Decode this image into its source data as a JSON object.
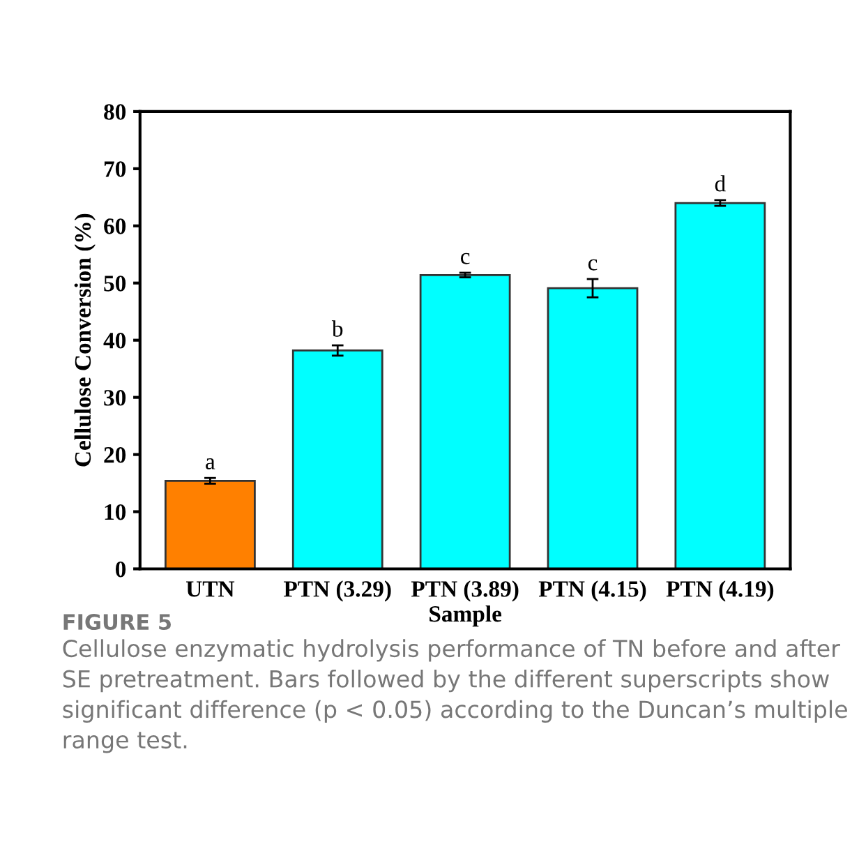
{
  "chart_data": {
    "type": "bar",
    "xlabel": "Sample",
    "ylabel": "Cellulose Conversion (%)",
    "categories": [
      "UTN",
      "PTN (3.29)",
      "PTN (3.89)",
      "PTN (4.15)",
      "PTN (4.19)"
    ],
    "values": [
      15.4,
      38.2,
      51.4,
      49.1,
      64.0
    ],
    "errors": [
      0.5,
      0.9,
      0.4,
      1.6,
      0.5
    ],
    "colors": [
      "#ff8000",
      "#00ffff",
      "#00ffff",
      "#00ffff",
      "#00ffff"
    ],
    "ylim": [
      0,
      80
    ],
    "yticks": [
      0,
      10,
      20,
      30,
      40,
      50,
      60,
      70,
      80
    ],
    "grid": false,
    "legend": false,
    "annotations": [
      {
        "text": "a",
        "x": "UTN",
        "y": 15.9
      },
      {
        "text": "b",
        "x": "PTN (3.29)",
        "y": 39.1
      },
      {
        "text": "c",
        "x": "PTN (3.89)",
        "y": 51.8
      },
      {
        "text": "c",
        "x": "PTN (4.15)",
        "y": 50.7
      },
      {
        "text": "d",
        "x": "PTN (4.19)",
        "y": 64.5
      },
      "FIGURE 5",
      "Cellulose enzymatic hydrolysis performance of TN before and after SE pretreatment. Bars followed by the different superscripts show significant difference (p < 0.05) according to the Duncan’s multiple range test."
    ]
  }
}
